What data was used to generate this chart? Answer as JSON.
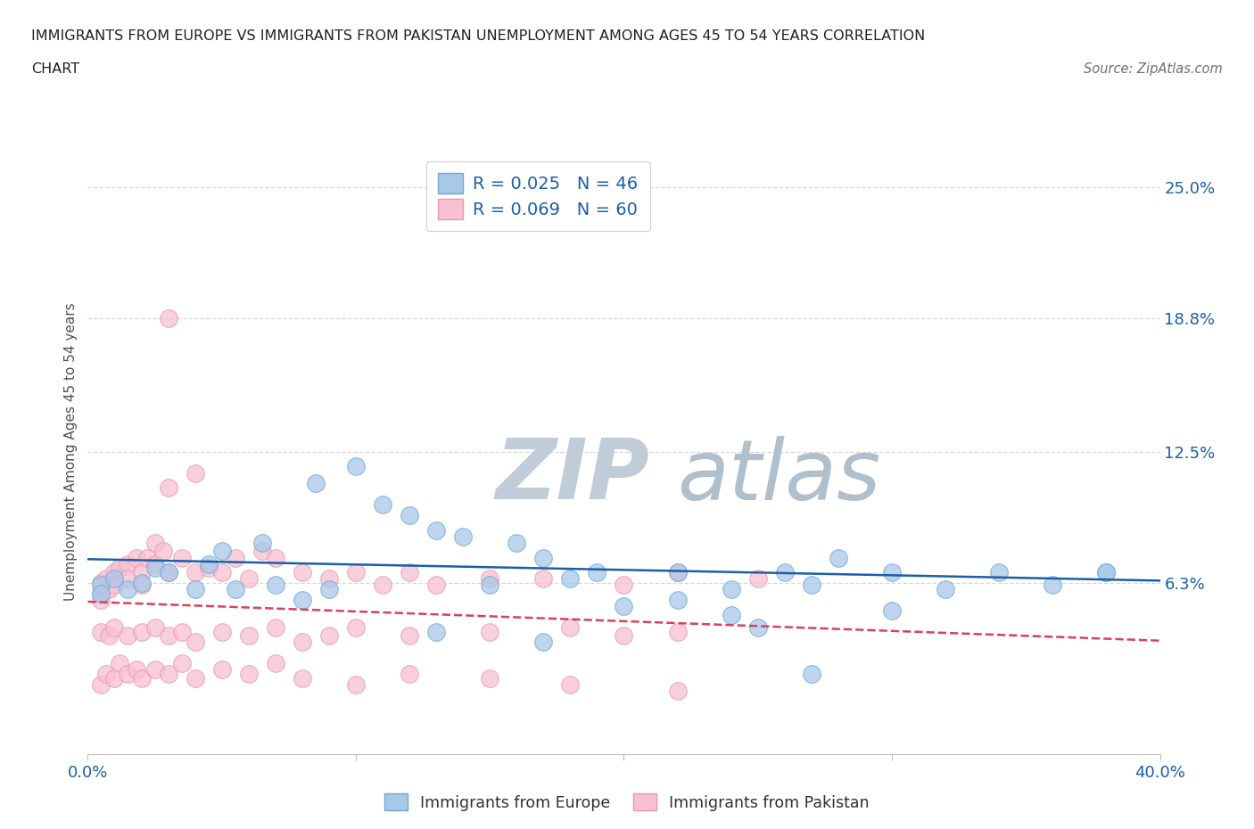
{
  "title_line1": "IMMIGRANTS FROM EUROPE VS IMMIGRANTS FROM PAKISTAN UNEMPLOYMENT AMONG AGES 45 TO 54 YEARS CORRELATION",
  "title_line2": "CHART",
  "source_text": "Source: ZipAtlas.com",
  "ylabel": "Unemployment Among Ages 45 to 54 years",
  "x_min": 0.0,
  "x_max": 0.4,
  "y_min": -0.018,
  "y_max": 0.268,
  "y_ticks_right": [
    0.063,
    0.125,
    0.188,
    0.25
  ],
  "y_tick_labels_right": [
    "6.3%",
    "12.5%",
    "18.8%",
    "25.0%"
  ],
  "europe_R": 0.025,
  "europe_N": 46,
  "pakistan_R": 0.069,
  "pakistan_N": 60,
  "europe_color": "#a8c8e8",
  "pakistan_color": "#f8c0d0",
  "europe_edge_color": "#6aaad8",
  "pakistan_edge_color": "#e898b0",
  "trend_europe_color": "#1a5fa8",
  "trend_pakistan_color": "#d84060",
  "watermark_zip_color": "#c8d4e4",
  "watermark_atlas_color": "#b8c8d8",
  "background_color": "#ffffff",
  "grid_color": "#d8d8d8",
  "europe_x": [
    0.195,
    0.005,
    0.005,
    0.01,
    0.015,
    0.02,
    0.025,
    0.03,
    0.04,
    0.045,
    0.05,
    0.055,
    0.065,
    0.07,
    0.08,
    0.085,
    0.09,
    0.1,
    0.11,
    0.12,
    0.13,
    0.14,
    0.15,
    0.16,
    0.17,
    0.18,
    0.19,
    0.22,
    0.24,
    0.26,
    0.27,
    0.28,
    0.3,
    0.32,
    0.34,
    0.36,
    0.38,
    0.2,
    0.22,
    0.24,
    0.25,
    0.13,
    0.17,
    0.3,
    0.38,
    0.27
  ],
  "europe_y": [
    0.235,
    0.062,
    0.058,
    0.065,
    0.06,
    0.063,
    0.07,
    0.068,
    0.06,
    0.072,
    0.078,
    0.06,
    0.082,
    0.062,
    0.055,
    0.11,
    0.06,
    0.118,
    0.1,
    0.095,
    0.088,
    0.085,
    0.062,
    0.082,
    0.075,
    0.065,
    0.068,
    0.068,
    0.06,
    0.068,
    0.062,
    0.075,
    0.068,
    0.06,
    0.068,
    0.062,
    0.068,
    0.052,
    0.055,
    0.048,
    0.042,
    0.04,
    0.035,
    0.05,
    0.068,
    0.02
  ],
  "pakistan_x": [
    0.005,
    0.005,
    0.005,
    0.007,
    0.008,
    0.01,
    0.01,
    0.012,
    0.015,
    0.015,
    0.018,
    0.02,
    0.02,
    0.022,
    0.025,
    0.025,
    0.028,
    0.03,
    0.03,
    0.035,
    0.04,
    0.04,
    0.045,
    0.05,
    0.055,
    0.06,
    0.065,
    0.07,
    0.08,
    0.09,
    0.1,
    0.11,
    0.12,
    0.13,
    0.15,
    0.17,
    0.2,
    0.22,
    0.25,
    0.03,
    0.005,
    0.008,
    0.01,
    0.015,
    0.02,
    0.025,
    0.03,
    0.035,
    0.04,
    0.05,
    0.06,
    0.07,
    0.08,
    0.09,
    0.1,
    0.12,
    0.15,
    0.18,
    0.2,
    0.22
  ],
  "pakistan_y": [
    0.063,
    0.058,
    0.055,
    0.065,
    0.06,
    0.068,
    0.062,
    0.07,
    0.072,
    0.065,
    0.075,
    0.068,
    0.062,
    0.075,
    0.082,
    0.072,
    0.078,
    0.068,
    0.188,
    0.075,
    0.068,
    0.115,
    0.07,
    0.068,
    0.075,
    0.065,
    0.078,
    0.075,
    0.068,
    0.065,
    0.068,
    0.062,
    0.068,
    0.062,
    0.065,
    0.065,
    0.062,
    0.068,
    0.065,
    0.108,
    0.04,
    0.038,
    0.042,
    0.038,
    0.04,
    0.042,
    0.038,
    0.04,
    0.035,
    0.04,
    0.038,
    0.042,
    0.035,
    0.038,
    0.042,
    0.038,
    0.04,
    0.042,
    0.038,
    0.04
  ],
  "pakistan_extra_x": [
    0.005,
    0.007,
    0.01,
    0.012,
    0.015,
    0.018,
    0.02,
    0.025,
    0.03,
    0.035,
    0.04,
    0.05,
    0.06,
    0.07,
    0.08,
    0.1,
    0.12,
    0.15,
    0.18,
    0.22
  ],
  "pakistan_extra_y": [
    0.015,
    0.02,
    0.018,
    0.025,
    0.02,
    0.022,
    0.018,
    0.022,
    0.02,
    0.025,
    0.018,
    0.022,
    0.02,
    0.025,
    0.018,
    0.015,
    0.02,
    0.018,
    0.015,
    0.012
  ]
}
